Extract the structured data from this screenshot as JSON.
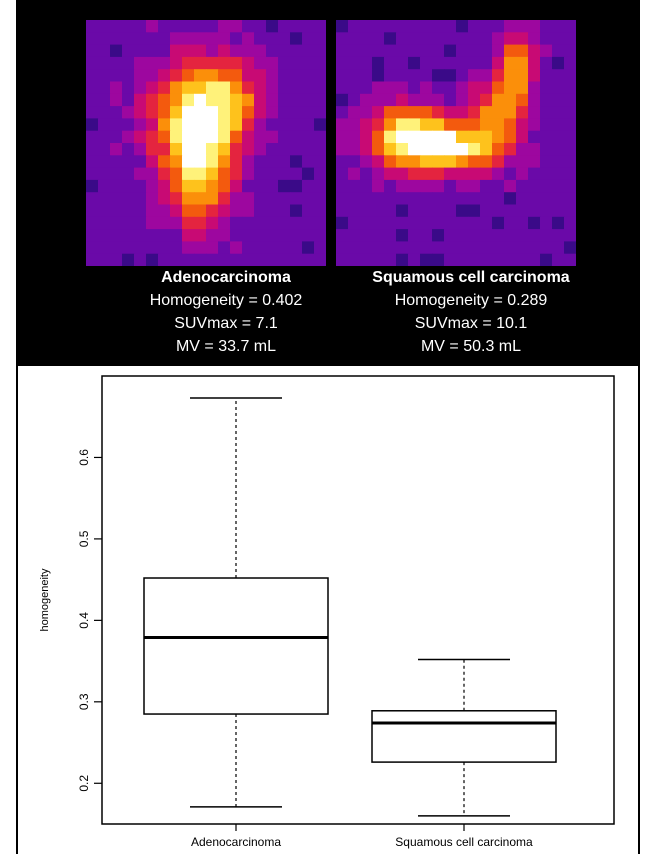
{
  "panels": [
    {
      "title": "Adenocarcinoma",
      "homogeneity_line": "Homogeneity = 0.402",
      "suvmax_line": "SUVmax = 7.1",
      "mv_line": "MV = 33.7 mL"
    },
    {
      "title": "Squamous cell carcinoma",
      "homogeneity_line": "Homogeneity = 0.289",
      "suvmax_line": "SUVmax = 10.1",
      "mv_line": "MV = 50.3 mL"
    }
  ],
  "colormap": [
    "#1d0a4a",
    "#3a0a88",
    "#6a09a8",
    "#9d079f",
    "#c80a74",
    "#e4243f",
    "#f35a0e",
    "#fb8f0a",
    "#fec21c",
    "#fff27a",
    "#ffffff"
  ],
  "chart_data": {
    "type": "box",
    "xlabel": "",
    "ylabel": "homogeneity",
    "ylim": [
      0.15,
      0.7
    ],
    "yticks": [
      0.2,
      0.3,
      0.4,
      0.5,
      0.6
    ],
    "ytick_labels": [
      "0.2",
      "0.3",
      "0.4",
      "0.5",
      "0.6"
    ],
    "categories": [
      "Adenocarcinoma",
      "Squamous cell carcinoma"
    ],
    "boxes": [
      {
        "name": "Adenocarcinoma",
        "min": 0.171,
        "q1": 0.285,
        "median": 0.379,
        "q3": 0.452,
        "max": 0.673
      },
      {
        "name": "Squamous cell carcinoma",
        "min": 0.16,
        "q1": 0.226,
        "median": 0.274,
        "q3": 0.289,
        "max": 0.352
      }
    ]
  }
}
